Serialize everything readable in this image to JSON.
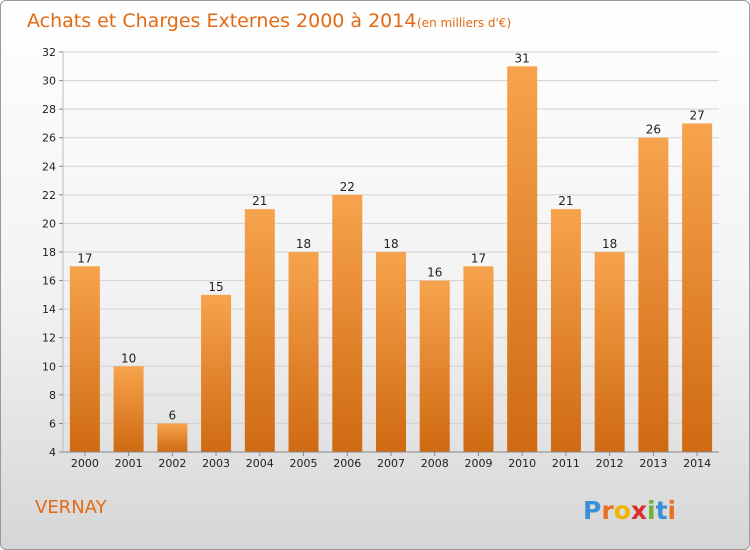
{
  "chart_data": {
    "type": "bar",
    "title": "Achats et Charges Externes 2000 à 2014",
    "unit_label": "(en milliers d'€)",
    "categories": [
      "2000",
      "2001",
      "2002",
      "2003",
      "2004",
      "2005",
      "2006",
      "2007",
      "2008",
      "2009",
      "2010",
      "2011",
      "2012",
      "2013",
      "2014"
    ],
    "values": [
      17,
      10,
      6,
      15,
      21,
      18,
      22,
      18,
      16,
      17,
      31,
      21,
      18,
      26,
      27
    ],
    "ylim": [
      4,
      32
    ],
    "yticks": [
      4,
      6,
      8,
      10,
      12,
      14,
      16,
      18,
      20,
      22,
      24,
      26,
      28,
      30,
      32
    ],
    "grid": true,
    "bar_color_top": "#f7a34d",
    "bar_color_bottom": "#cf6a12",
    "xlabel": "",
    "ylabel": ""
  },
  "commune": "VERNAY",
  "logo": {
    "letters": [
      "P",
      "r",
      "o",
      "x",
      "i",
      "t",
      "i"
    ],
    "colors": [
      "#3a8fd6",
      "#e8712a",
      "#f0b400",
      "#d8302d",
      "#6bb33a",
      "#3a8fd6",
      "#e8712a"
    ]
  },
  "accent_color": "#e36a12"
}
